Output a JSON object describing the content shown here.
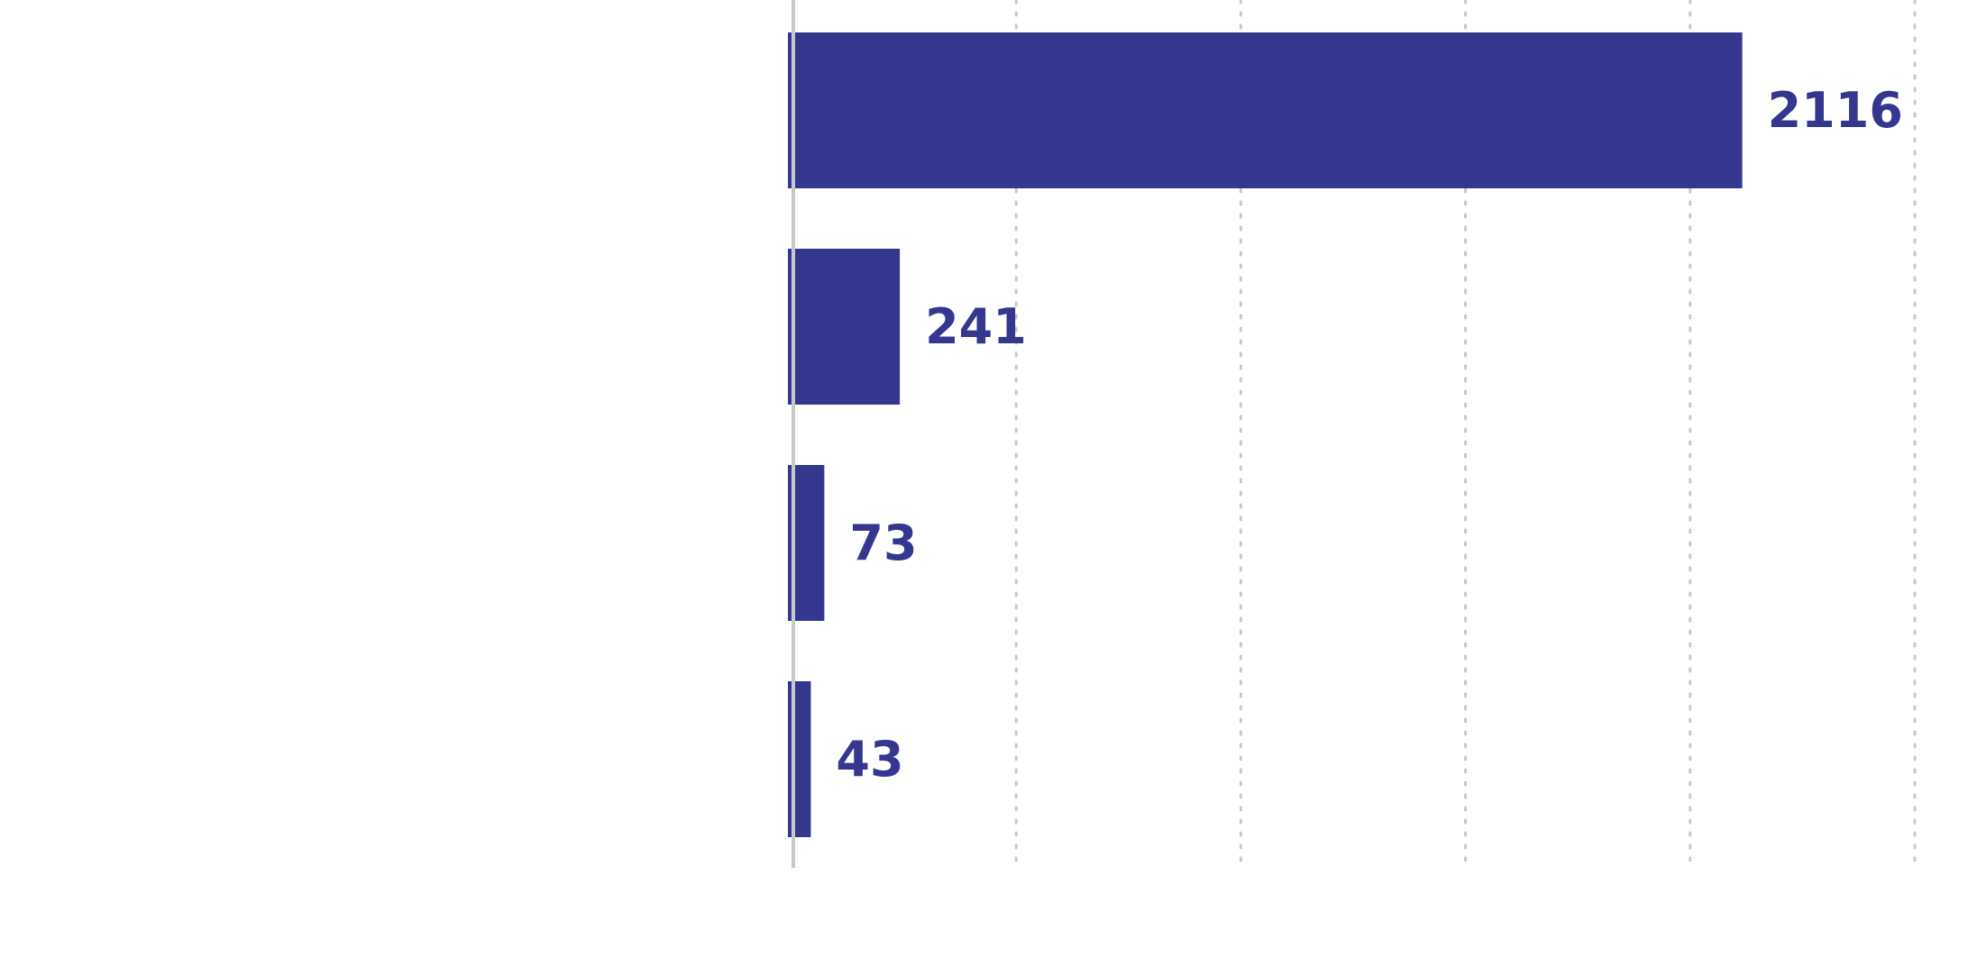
{
  "chart_data": {
    "type": "bar",
    "orientation": "horizontal",
    "categories": [
      "",
      "",
      "",
      ""
    ],
    "values": [
      2116,
      241,
      73,
      43
    ],
    "data_labels": [
      "2116",
      "241",
      "73",
      "43"
    ],
    "title": "",
    "xlabel": "",
    "ylabel": "",
    "xlim": [
      0,
      2500
    ],
    "x_grid_step": 500,
    "grid": "vertical-dotted",
    "legend": "none",
    "colors": {
      "bar": "#35378f",
      "label": "#35378f",
      "axis": "#c8c8c8",
      "grid": "#c8c8c8"
    }
  }
}
